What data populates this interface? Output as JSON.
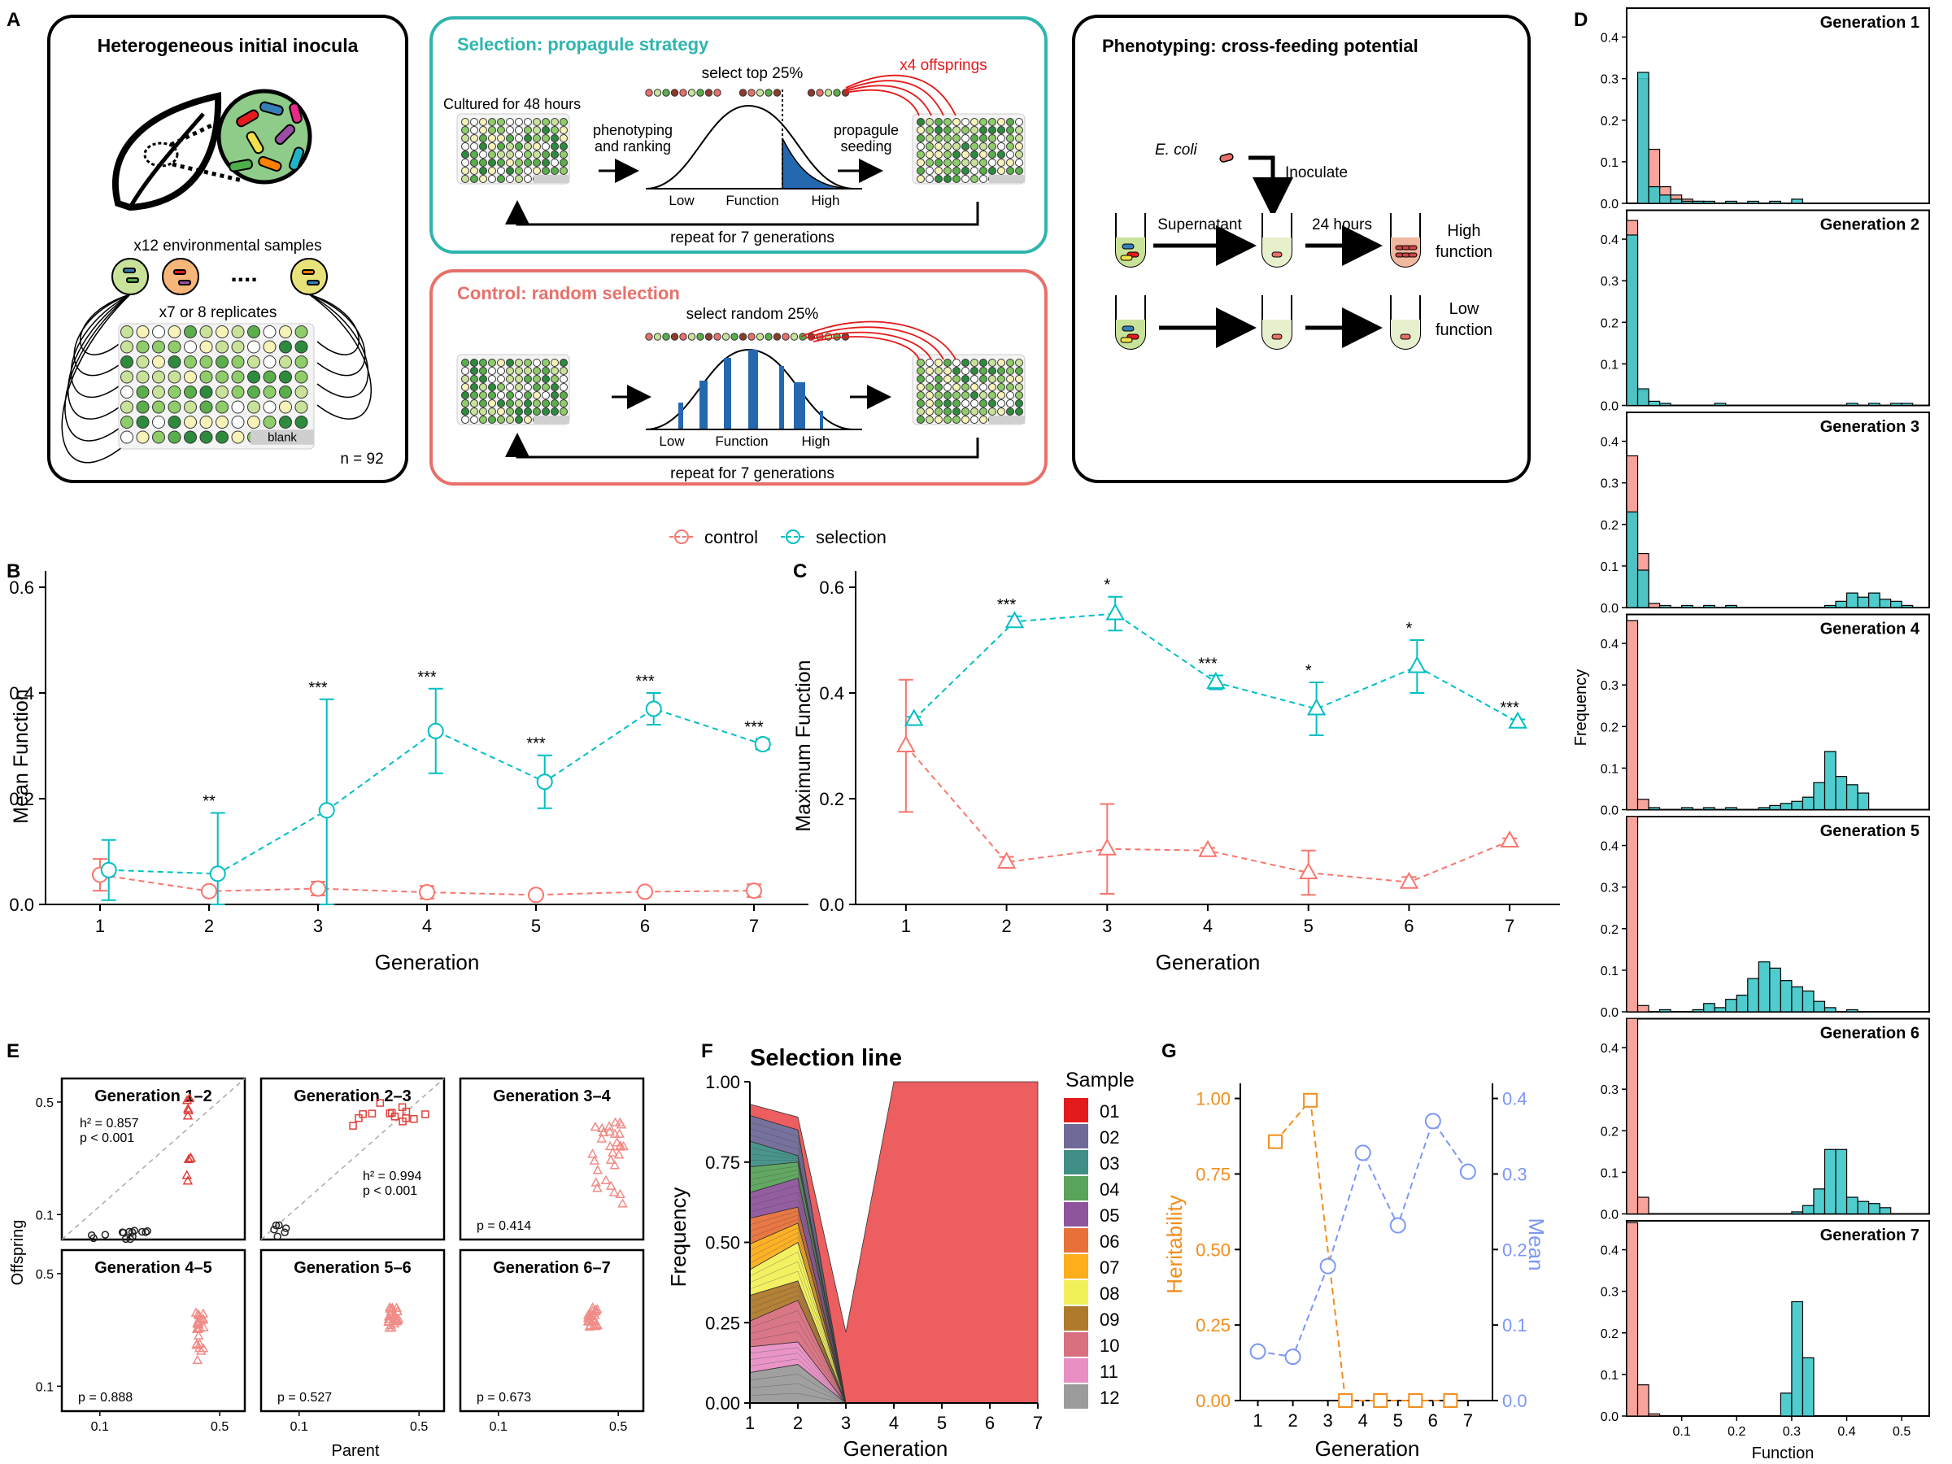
{
  "panel_letters": [
    "A",
    "B",
    "C",
    "D",
    "E",
    "F",
    "G"
  ],
  "panel_a": {
    "inocula": {
      "title": "Heterogeneous initial inocula",
      "samples_label": "x12 environmental samples",
      "dots": "....",
      "replicates_label": "x7 or 8 replicates",
      "blank_label": "blank",
      "n_label": "n = 92"
    },
    "selection": {
      "title": "Selection: propagule strategy",
      "cultured_label": "Cultured for 48 hours",
      "select_label": "select top 25%",
      "offspring_label": "x4 offsprings",
      "phenotyping_label": [
        "phenotyping",
        "and ranking"
      ],
      "propagule_label": [
        "propagule",
        "seeding"
      ],
      "axis_low": "Low",
      "axis_function": "Function",
      "axis_high": "High",
      "repeat_label": "repeat for 7 generations"
    },
    "control": {
      "title": "Control: random selection",
      "select_label": "select random 25%",
      "axis_low": "Low",
      "axis_function": "Function",
      "axis_high": "High",
      "repeat_label": "repeat for 7 generations"
    },
    "phenotyping": {
      "title": "Phenotyping: cross-feeding potential",
      "ecoli_label": "E. coli",
      "inoculate_label": "Inoculate",
      "supernatant_label": "Supernatant",
      "hours_label": "24 hours",
      "high_label": [
        "High",
        "function"
      ],
      "low_label": [
        "Low",
        "function"
      ]
    }
  },
  "legend": {
    "control": "control",
    "selection": "selection",
    "colors": {
      "control": "#f8766d",
      "selection": "#00bfc4"
    }
  },
  "panel_b": {
    "type": "line",
    "xlabel": "Generation",
    "ylabel": "Mean Function",
    "x": [
      1,
      2,
      3,
      4,
      5,
      6,
      7
    ],
    "ylim": [
      0,
      0.6
    ],
    "yticks": [
      "0.0",
      "0.2",
      "0.4",
      "0.6"
    ],
    "series": [
      {
        "name": "control",
        "values": [
          0.056,
          0.025,
          0.03,
          0.023,
          0.018,
          0.024,
          0.026
        ],
        "err": [
          0.03,
          0.005,
          0.013,
          0.012,
          0.005,
          0.004,
          0.012
        ]
      },
      {
        "name": "selection",
        "values": [
          0.065,
          0.058,
          0.178,
          0.328,
          0.232,
          0.37,
          0.303
        ],
        "err": [
          0.057,
          0.115,
          0.21,
          0.08,
          0.05,
          0.03,
          0.01
        ]
      }
    ],
    "stars": [
      "",
      "**",
      "***",
      "***",
      "***",
      "***",
      "***"
    ]
  },
  "panel_c": {
    "type": "line",
    "xlabel": "Generation",
    "ylabel": "Maximum Function",
    "x": [
      1,
      2,
      3,
      4,
      5,
      6,
      7
    ],
    "ylim": [
      0,
      0.6
    ],
    "yticks": [
      "0.0",
      "0.2",
      "0.4",
      "0.6"
    ],
    "series": [
      {
        "name": "control",
        "values": [
          0.3,
          0.08,
          0.105,
          0.102,
          0.06,
          0.042,
          0.12
        ],
        "err": [
          0.125,
          0.01,
          0.085,
          0.005,
          0.042,
          0.01,
          0.005
        ]
      },
      {
        "name": "selection",
        "values": [
          0.35,
          0.535,
          0.55,
          0.42,
          0.37,
          0.45,
          0.345
        ],
        "err": [
          0.005,
          0.01,
          0.032,
          0.013,
          0.05,
          0.05,
          0.005
        ]
      }
    ],
    "stars": [
      "",
      "***",
      "*",
      "***",
      "*",
      "*",
      "***"
    ]
  },
  "panel_d": {
    "type": "bar",
    "xlabel": "Function",
    "ylabel": "Frequency",
    "xlim": [
      0,
      0.55
    ],
    "xticks": [
      "0.1",
      "0.2",
      "0.3",
      "0.4",
      "0.5"
    ],
    "ylim": [
      0,
      0.45
    ],
    "yticks": [
      "0.0",
      "0.1",
      "0.2",
      "0.3",
      "0.4"
    ],
    "bin_width": 0.02,
    "panels": [
      {
        "label": "Generation 1",
        "control": [
          [
            0.02,
            0.3
          ],
          [
            0.04,
            0.13
          ],
          [
            0.06,
            0.04
          ],
          [
            0.08,
            0.02
          ],
          [
            0.1,
            0.01
          ],
          [
            0.12,
            0.005
          ]
        ],
        "selection": [
          [
            0.02,
            0.315
          ],
          [
            0.04,
            0.04
          ],
          [
            0.06,
            0.02
          ],
          [
            0.08,
            0.01
          ],
          [
            0.1,
            0.005
          ],
          [
            0.12,
            0.005
          ],
          [
            0.14,
            0.005
          ],
          [
            0.18,
            0.005
          ],
          [
            0.22,
            0.005
          ],
          [
            0.26,
            0.005
          ],
          [
            0.3,
            0.01
          ]
        ]
      },
      {
        "label": "Generation 2",
        "control": [
          [
            0.0,
            0.445
          ],
          [
            0.02,
            0.035
          ]
        ],
        "selection": [
          [
            0.0,
            0.41
          ],
          [
            0.02,
            0.04
          ],
          [
            0.04,
            0.01
          ],
          [
            0.06,
            0.005
          ],
          [
            0.16,
            0.005
          ],
          [
            0.4,
            0.005
          ],
          [
            0.44,
            0.005
          ],
          [
            0.48,
            0.005
          ],
          [
            0.5,
            0.005
          ]
        ]
      },
      {
        "label": "Generation 3",
        "control": [
          [
            0.0,
            0.365
          ],
          [
            0.02,
            0.13
          ],
          [
            0.04,
            0.01
          ]
        ],
        "selection": [
          [
            0.0,
            0.23
          ],
          [
            0.02,
            0.09
          ],
          [
            0.06,
            0.005
          ],
          [
            0.1,
            0.005
          ],
          [
            0.14,
            0.005
          ],
          [
            0.18,
            0.005
          ],
          [
            0.36,
            0.005
          ],
          [
            0.38,
            0.015
          ],
          [
            0.4,
            0.035
          ],
          [
            0.42,
            0.025
          ],
          [
            0.44,
            0.035
          ],
          [
            0.46,
            0.02
          ],
          [
            0.48,
            0.015
          ],
          [
            0.5,
            0.005
          ]
        ]
      },
      {
        "label": "Generation 4",
        "control": [
          [
            0.0,
            0.455
          ],
          [
            0.02,
            0.025
          ]
        ],
        "selection": [
          [
            0.04,
            0.005
          ],
          [
            0.1,
            0.005
          ],
          [
            0.14,
            0.005
          ],
          [
            0.18,
            0.005
          ],
          [
            0.24,
            0.005
          ],
          [
            0.26,
            0.01
          ],
          [
            0.28,
            0.015
          ],
          [
            0.3,
            0.02
          ],
          [
            0.32,
            0.03
          ],
          [
            0.34,
            0.065
          ],
          [
            0.36,
            0.14
          ],
          [
            0.38,
            0.08
          ],
          [
            0.4,
            0.06
          ],
          [
            0.42,
            0.04
          ]
        ]
      },
      {
        "label": "Generation 5",
        "control": [
          [
            0.0,
            0.47
          ],
          [
            0.02,
            0.015
          ]
        ],
        "selection": [
          [
            0.06,
            0.005
          ],
          [
            0.12,
            0.005
          ],
          [
            0.14,
            0.02
          ],
          [
            0.16,
            0.01
          ],
          [
            0.18,
            0.03
          ],
          [
            0.2,
            0.04
          ],
          [
            0.22,
            0.08
          ],
          [
            0.24,
            0.12
          ],
          [
            0.26,
            0.105
          ],
          [
            0.28,
            0.075
          ],
          [
            0.3,
            0.06
          ],
          [
            0.32,
            0.05
          ],
          [
            0.34,
            0.025
          ],
          [
            0.36,
            0.01
          ],
          [
            0.4,
            0.005
          ]
        ]
      },
      {
        "label": "Generation 6",
        "control": [
          [
            0.0,
            0.47
          ],
          [
            0.02,
            0.04
          ]
        ],
        "selection": [
          [
            0.3,
            0.005
          ],
          [
            0.32,
            0.02
          ],
          [
            0.34,
            0.06
          ],
          [
            0.36,
            0.155
          ],
          [
            0.38,
            0.155
          ],
          [
            0.4,
            0.04
          ],
          [
            0.42,
            0.03
          ],
          [
            0.44,
            0.025
          ],
          [
            0.46,
            0.015
          ]
        ]
      },
      {
        "label": "Generation 7",
        "control": [
          [
            0.0,
            0.465
          ],
          [
            0.02,
            0.075
          ],
          [
            0.04,
            0.005
          ]
        ],
        "selection": [
          [
            0.28,
            0.055
          ],
          [
            0.3,
            0.275
          ],
          [
            0.32,
            0.14
          ]
        ]
      }
    ]
  },
  "panel_e": {
    "type": "scatter",
    "xlabel": "Parent",
    "ylabel": "Offspring",
    "xticks": [
      "0.1",
      "0.5"
    ],
    "yticks": [
      "0.5",
      "0.1"
    ],
    "panels": [
      {
        "title": "Generation 1–2",
        "h2": "h² = 0.857",
        "p": "p < 0.001"
      },
      {
        "title": "Generation 2–3",
        "h2": "h² = 0.994",
        "p": "p < 0.001"
      },
      {
        "title": "Generation 3–4",
        "p": "p = 0.414"
      },
      {
        "title": "Generation 4–5",
        "p": "p = 0.888"
      },
      {
        "title": "Generation 5–6",
        "p": "p = 0.527"
      },
      {
        "title": "Generation 6–7",
        "p": "p = 0.673"
      }
    ]
  },
  "panel_f": {
    "type": "area",
    "title": "Selection line",
    "xlabel": "Generation",
    "ylabel": "Frequency",
    "x": [
      1,
      2,
      3,
      4,
      5,
      6,
      7
    ],
    "xticks": [
      "1",
      "2",
      "3",
      "4",
      "5",
      "6",
      "7"
    ],
    "yticks": [
      "0.00",
      "0.25",
      "0.50",
      "0.75",
      "1.00"
    ],
    "ylim": [
      0,
      1
    ],
    "legend_title": "Sample",
    "samples": [
      {
        "name": "01",
        "color": "#e41a1c",
        "values": [
          0.035,
          0.04,
          0.22,
          1.0,
          1.0,
          1.0,
          1.0
        ]
      },
      {
        "name": "02",
        "color": "#6f6a98",
        "values": [
          0.08,
          0.08,
          0.0,
          0.0,
          0.0,
          0.0,
          0.0
        ]
      },
      {
        "name": "03",
        "color": "#3f8f87",
        "values": [
          0.08,
          0.02,
          0.0,
          0.0,
          0.0,
          0.0,
          0.0
        ]
      },
      {
        "name": "04",
        "color": "#5aa35a",
        "values": [
          0.08,
          0.05,
          0.0,
          0.0,
          0.0,
          0.0,
          0.0
        ]
      },
      {
        "name": "05",
        "color": "#8e559c",
        "values": [
          0.08,
          0.09,
          0.0,
          0.0,
          0.0,
          0.0,
          0.0
        ]
      },
      {
        "name": "06",
        "color": "#e8713a",
        "values": [
          0.08,
          0.05,
          0.0,
          0.0,
          0.0,
          0.0,
          0.0
        ]
      },
      {
        "name": "07",
        "color": "#fdae1a",
        "values": [
          0.08,
          0.06,
          0.0,
          0.0,
          0.0,
          0.0,
          0.0
        ]
      },
      {
        "name": "08",
        "color": "#f2f05a",
        "values": [
          0.08,
          0.12,
          0.0,
          0.0,
          0.0,
          0.0,
          0.0
        ]
      },
      {
        "name": "09",
        "color": "#b07a2c",
        "values": [
          0.08,
          0.06,
          0.0,
          0.0,
          0.0,
          0.0,
          0.0
        ]
      },
      {
        "name": "10",
        "color": "#d8707f",
        "values": [
          0.08,
          0.13,
          0.0,
          0.0,
          0.0,
          0.0,
          0.0
        ]
      },
      {
        "name": "11",
        "color": "#e98fc4",
        "values": [
          0.08,
          0.07,
          0.0,
          0.0,
          0.0,
          0.0,
          0.0
        ]
      },
      {
        "name": "12",
        "color": "#9b9b9b",
        "values": [
          0.095,
          0.12,
          0.0,
          0.0,
          0.0,
          0.0,
          0.0
        ]
      }
    ]
  },
  "panel_g": {
    "type": "line",
    "xlabel": "Generation",
    "ylabel_left": "Heritability",
    "ylabel_right": "Mean",
    "xticks": [
      "1",
      "2",
      "3",
      "4",
      "5",
      "6",
      "7"
    ],
    "yticks_left": [
      "0.00",
      "0.25",
      "0.50",
      "0.75",
      "1.00"
    ],
    "yticks_right": [
      "0.0",
      "0.1",
      "0.2",
      "0.3",
      "0.4"
    ],
    "ylim_left": [
      0,
      1.05
    ],
    "ylim_right": [
      0,
      0.42
    ],
    "heritability": {
      "x": [
        1.5,
        2.5,
        3.5,
        4.5,
        5.5,
        6.5
      ],
      "values": [
        0.857,
        0.994,
        0.0,
        0.0,
        0.0,
        0.0
      ],
      "color": "#f28e1c"
    },
    "mean": {
      "x": [
        1,
        2,
        3,
        4,
        5,
        6,
        7
      ],
      "values": [
        0.065,
        0.058,
        0.178,
        0.328,
        0.232,
        0.37,
        0.303
      ],
      "color": "#7b97f7"
    }
  }
}
